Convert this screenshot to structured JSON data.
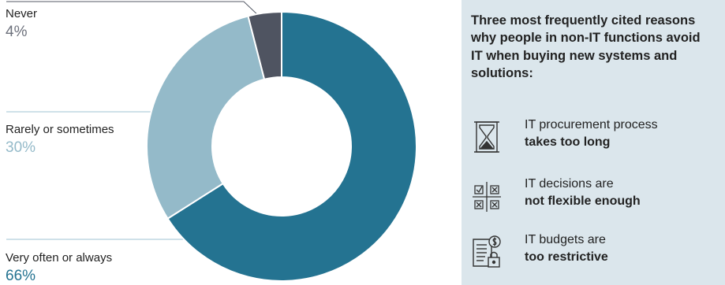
{
  "colors": {
    "very_often": "#247391",
    "rarely": "#94bac9",
    "never": "#4f5461",
    "leader": "#9fc3d3",
    "never_leader": "#555a66",
    "panel_bg": "#dbe6ec",
    "pct_very": "#247391",
    "pct_rarely": "#94bac9",
    "pct_never": "#6d717c"
  },
  "chart_data": {
    "type": "pie",
    "donut": true,
    "categories": [
      "Very often or always",
      "Rarely or sometimes",
      "Never"
    ],
    "values": [
      66,
      30,
      4
    ],
    "value_labels": [
      "66%",
      "30%",
      "4%"
    ]
  },
  "labels": {
    "never": {
      "name": "Never",
      "pct": "4%"
    },
    "rarely": {
      "name": "Rarely or sometimes",
      "pct": "30%"
    },
    "very": {
      "name": "Very often or always",
      "pct": "66%"
    }
  },
  "panel": {
    "heading": "Three most frequently cited reasons why people in non-IT functions avoid IT when buying new systems and solutions:",
    "reasons": [
      {
        "icon": "hourglass-icon",
        "line1": "IT procurement process",
        "line2": "takes too long"
      },
      {
        "icon": "checkbox-grid-icon",
        "line1": "IT decisions are",
        "line2": "not flexible enough"
      },
      {
        "icon": "budget-document-icon",
        "line1": "IT budgets are",
        "line2": "too restrictive"
      }
    ]
  }
}
